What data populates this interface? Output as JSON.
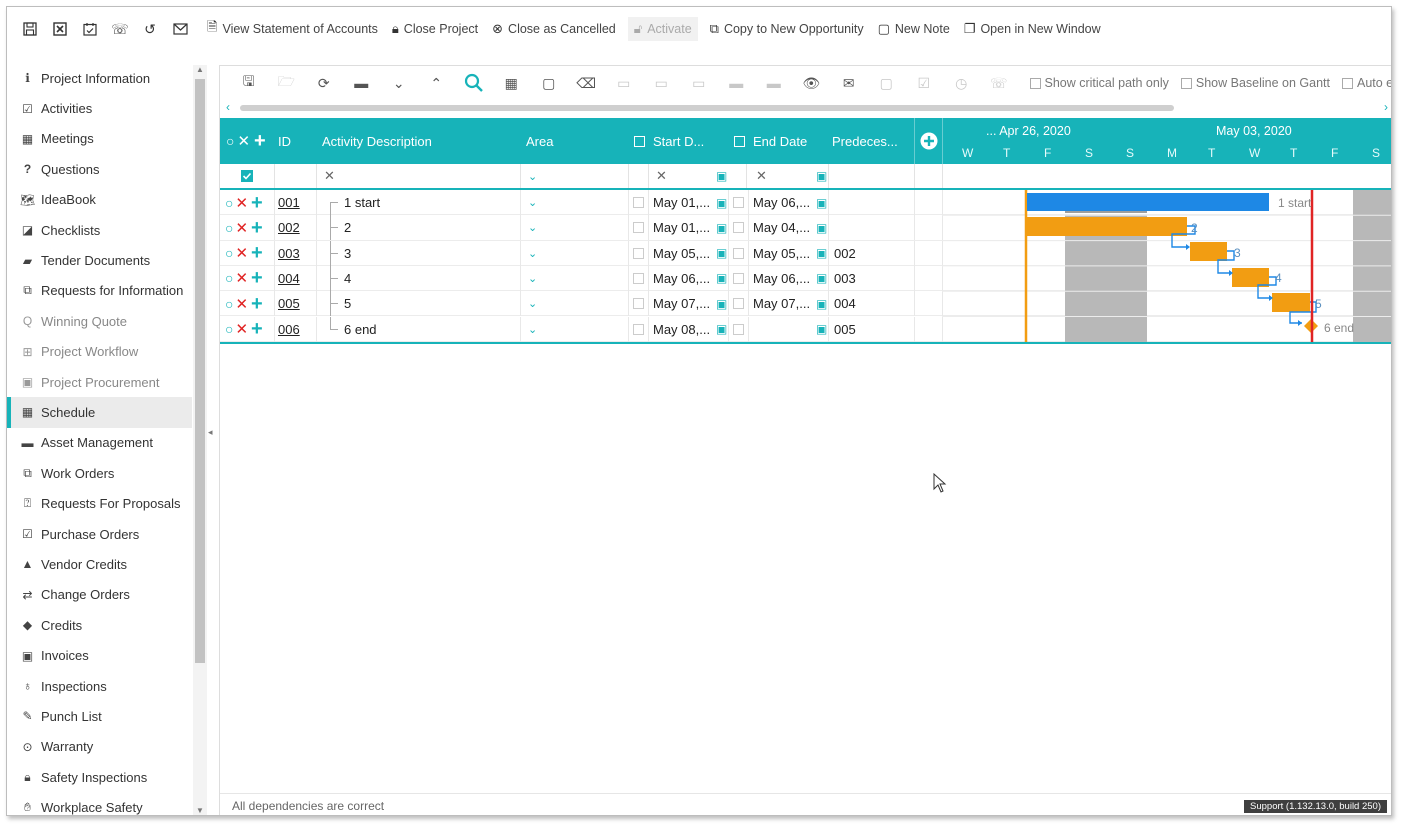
{
  "toolbar": {
    "icons": [
      "save-icon",
      "close-box-icon",
      "calendar-check-icon",
      "phone-icon",
      "undo-icon",
      "mail-icon"
    ],
    "view_statement": "View Statement of Accounts",
    "close_project": "Close Project",
    "close_cancelled": "Close as Cancelled",
    "activate": "Activate",
    "copy_opportunity": "Copy to New Opportunity",
    "new_note": "New Note",
    "open_window": "Open in New Window"
  },
  "sidebar": {
    "items": [
      {
        "label": "Project Information",
        "icon": "info-icon",
        "state": "normal"
      },
      {
        "label": "Activities",
        "icon": "calendar-check-icon",
        "state": "normal"
      },
      {
        "label": "Meetings",
        "icon": "calendar-icon",
        "state": "normal"
      },
      {
        "label": "Questions",
        "icon": "question-icon",
        "state": "normal"
      },
      {
        "label": "IdeaBook",
        "icon": "map-icon",
        "state": "normal"
      },
      {
        "label": "Checklists",
        "icon": "checklist-icon",
        "state": "normal"
      },
      {
        "label": "Tender Documents",
        "icon": "book-icon",
        "state": "normal"
      },
      {
        "label": "Requests for Information",
        "icon": "copy-icon",
        "state": "normal"
      },
      {
        "label": "Winning Quote",
        "icon": "search-icon",
        "state": "dim"
      },
      {
        "label": "Project Workflow",
        "icon": "workflow-icon",
        "state": "dim"
      },
      {
        "label": "Project Procurement",
        "icon": "procurement-icon",
        "state": "dim"
      },
      {
        "label": "Schedule",
        "icon": "calendar-icon",
        "state": "active"
      },
      {
        "label": "Asset Management",
        "icon": "archive-icon",
        "state": "normal"
      },
      {
        "label": "Work Orders",
        "icon": "copy-icon",
        "state": "normal"
      },
      {
        "label": "Requests For Proposals",
        "icon": "question-circle-icon",
        "state": "normal"
      },
      {
        "label": "Purchase Orders",
        "icon": "check-square-icon",
        "state": "normal"
      },
      {
        "label": "Vendor Credits",
        "icon": "warning-icon",
        "state": "normal"
      },
      {
        "label": "Change Orders",
        "icon": "swap-icon",
        "state": "normal"
      },
      {
        "label": "Credits",
        "icon": "tags-icon",
        "state": "normal"
      },
      {
        "label": "Invoices",
        "icon": "money-icon",
        "state": "normal"
      },
      {
        "label": "Inspections",
        "icon": "lightbulb-icon",
        "state": "normal"
      },
      {
        "label": "Punch List",
        "icon": "edit-icon",
        "state": "normal"
      },
      {
        "label": "Warranty",
        "icon": "dot-circle-icon",
        "state": "normal"
      },
      {
        "label": "Safety Inspections",
        "icon": "lock-icon",
        "state": "normal"
      },
      {
        "label": "Workplace Safety",
        "icon": "hand-icon",
        "state": "normal"
      }
    ]
  },
  "gantt_toolbar": {
    "show_critical": "Show critical path only",
    "show_baseline": "Show Baseline on Gantt",
    "auto": "Auto e"
  },
  "grid": {
    "headers": {
      "id": "ID",
      "description": "Activity Description",
      "area": "Area",
      "start": "Start D...",
      "end": "End Date",
      "predecessors": "Predeces..."
    },
    "timeline": {
      "week1": "... Apr 26, 2020",
      "week2": "May 03, 2020",
      "days": [
        "W",
        "T",
        "F",
        "S",
        "S",
        "M",
        "T",
        "W",
        "T",
        "F",
        "S"
      ]
    },
    "rows": [
      {
        "id": "001",
        "description": "1 start",
        "start": "May 01,...",
        "end": "May 06,...",
        "pred": ""
      },
      {
        "id": "002",
        "description": "2",
        "start": "May 01,...",
        "end": "May 04,...",
        "pred": ""
      },
      {
        "id": "003",
        "description": "3",
        "start": "May 05,...",
        "end": "May 05,...",
        "pred": "002"
      },
      {
        "id": "004",
        "description": "4",
        "start": "May 06,...",
        "end": "May 06,...",
        "pred": "003"
      },
      {
        "id": "005",
        "description": "5",
        "start": "May 07,...",
        "end": "May 07,...",
        "pred": "004"
      },
      {
        "id": "006",
        "description": "6 end",
        "start": "May 08,...",
        "end": "",
        "pred": "005"
      }
    ],
    "bar_labels": [
      "1 start",
      "2",
      "3",
      "4",
      "5",
      "6 end"
    ]
  },
  "colors": {
    "accent": "#17b3b9",
    "summary_bar": "#1e88e5",
    "task_bar": "#f29d12",
    "critical": "#e02424",
    "weekend": "#b8b8b8"
  },
  "status": {
    "message": "All dependencies are correct",
    "support": "Support (1.132.13.0, build 250)"
  }
}
